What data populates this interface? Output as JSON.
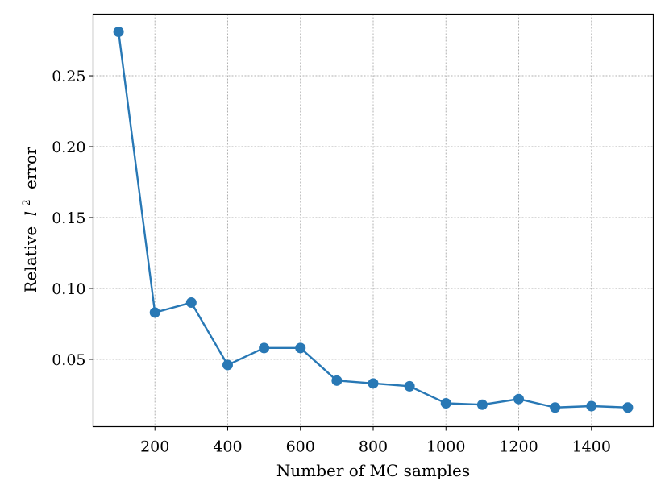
{
  "chart_data": {
    "type": "line",
    "x": [
      100,
      200,
      300,
      400,
      500,
      600,
      700,
      800,
      900,
      1000,
      1100,
      1200,
      1300,
      1400,
      1500
    ],
    "series": [
      {
        "values": [
          0.281,
          0.083,
          0.09,
          0.046,
          0.058,
          0.058,
          0.035,
          0.033,
          0.031,
          0.019,
          0.018,
          0.022,
          0.016,
          0.017,
          0.016
        ]
      }
    ],
    "xlabel": "Number of MC samples",
    "ylabel_parts": {
      "before": "Relative",
      "symbol": "l",
      "superscript": "2",
      "after": "error"
    },
    "xlim": [
      30,
      1570
    ],
    "ylim": [
      0.0025,
      0.2935
    ],
    "xticks": [
      200,
      400,
      600,
      800,
      1000,
      1200,
      1400
    ],
    "yticks": [
      0.05,
      0.1,
      0.15,
      0.2,
      0.25
    ],
    "xtick_labels": [
      "200",
      "400",
      "600",
      "800",
      "1000",
      "1200",
      "1400"
    ],
    "ytick_labels": [
      "0.05",
      "0.10",
      "0.15",
      "0.20",
      "0.25"
    ],
    "grid": true,
    "line_color": "#2878b5",
    "marker": "circle"
  }
}
